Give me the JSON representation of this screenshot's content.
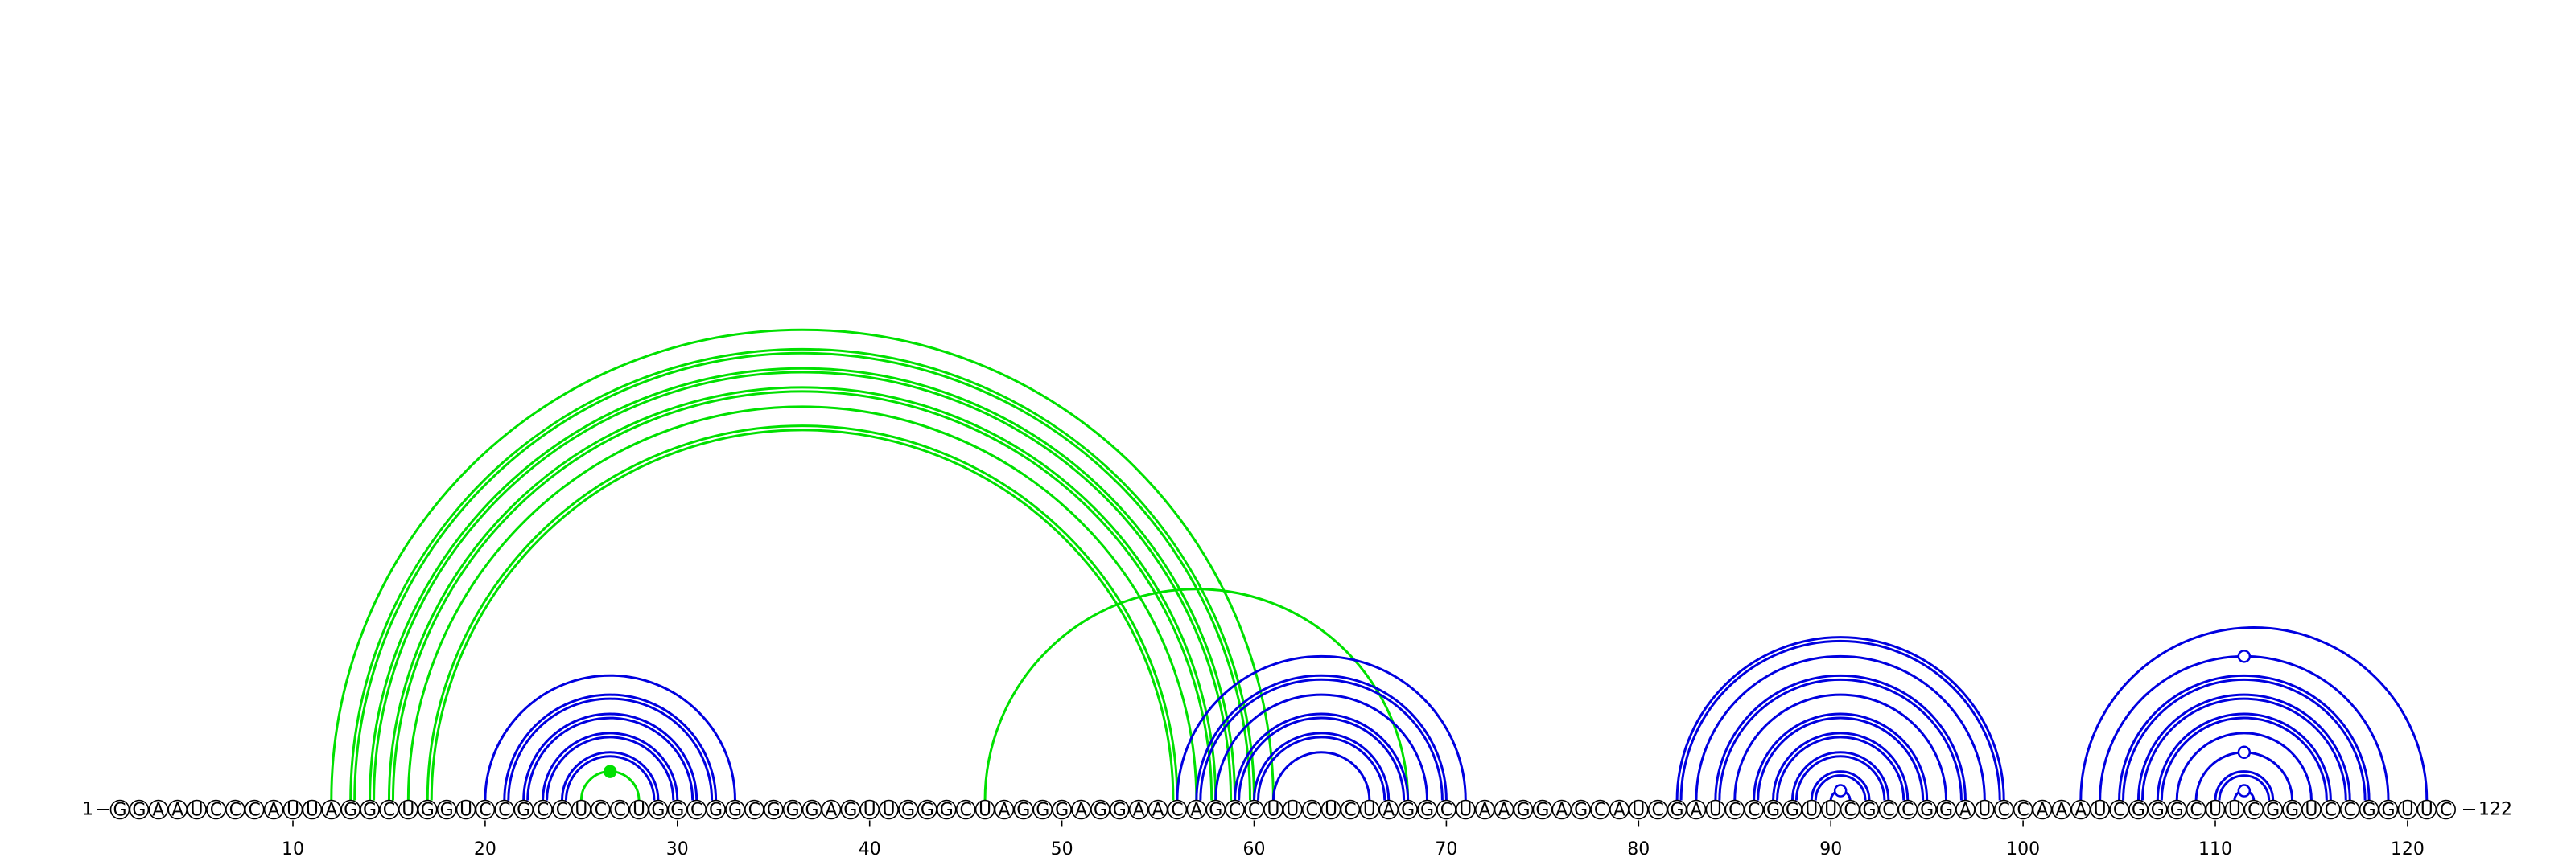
{
  "sequence": "GGAAUCCCAUUAGGCUGGUCCGCCUCCUGGCGGCGGGAGUUGGGCUAGGGAGGAACAGCCUUCUCUAGGCUAAGGAGCAUCGAUCCGGUUCGCCGGAUCCAAAUCGGGCUUCGGUCCGGUUC",
  "start_label": "1",
  "end_label": "122",
  "tick_labels": [
    {
      "pos": 10,
      "label": "10"
    },
    {
      "pos": 20,
      "label": "20"
    },
    {
      "pos": 30,
      "label": "30"
    },
    {
      "pos": 40,
      "label": "40"
    },
    {
      "pos": 50,
      "label": "50"
    },
    {
      "pos": 60,
      "label": "60"
    },
    {
      "pos": 70,
      "label": "70"
    },
    {
      "pos": 80,
      "label": "80"
    },
    {
      "pos": 90,
      "label": "90"
    },
    {
      "pos": 100,
      "label": "100"
    },
    {
      "pos": 110,
      "label": "110"
    },
    {
      "pos": 120,
      "label": "120"
    }
  ],
  "colors": {
    "green": "#00e000",
    "blue": "#0000e0"
  },
  "pairs": [
    {
      "i": 12,
      "j": 61,
      "color": "green"
    },
    {
      "i": 13,
      "j": 60,
      "color": "green",
      "double": true
    },
    {
      "i": 14,
      "j": 59,
      "color": "green",
      "double": true
    },
    {
      "i": 15,
      "j": 58,
      "color": "green",
      "double": true
    },
    {
      "i": 16,
      "j": 57,
      "color": "green"
    },
    {
      "i": 17,
      "j": 56,
      "color": "green",
      "double": true
    },
    {
      "i": 46,
      "j": 68,
      "color": "green"
    },
    {
      "i": 25,
      "j": 28,
      "color": "green",
      "marker": "filled"
    },
    {
      "i": 20,
      "j": 33,
      "color": "blue"
    },
    {
      "i": 21,
      "j": 32,
      "color": "blue",
      "double": true
    },
    {
      "i": 22,
      "j": 31,
      "color": "blue",
      "double": true
    },
    {
      "i": 23,
      "j": 30,
      "color": "blue",
      "double": true
    },
    {
      "i": 24,
      "j": 29,
      "color": "blue",
      "double": true
    },
    {
      "i": 56,
      "j": 71,
      "color": "blue"
    },
    {
      "i": 57,
      "j": 70,
      "color": "blue",
      "double": true
    },
    {
      "i": 58,
      "j": 69,
      "color": "blue"
    },
    {
      "i": 59,
      "j": 68,
      "color": "blue",
      "double": true
    },
    {
      "i": 60,
      "j": 67,
      "color": "blue",
      "double": true
    },
    {
      "i": 61,
      "j": 66,
      "color": "blue"
    },
    {
      "i": 82,
      "j": 99,
      "color": "blue",
      "double": true
    },
    {
      "i": 83,
      "j": 98,
      "color": "blue"
    },
    {
      "i": 84,
      "j": 97,
      "color": "blue",
      "double": true
    },
    {
      "i": 85,
      "j": 96,
      "color": "blue"
    },
    {
      "i": 86,
      "j": 95,
      "color": "blue",
      "double": true
    },
    {
      "i": 87,
      "j": 94,
      "color": "blue",
      "double": true
    },
    {
      "i": 88,
      "j": 93,
      "color": "blue",
      "double": true
    },
    {
      "i": 89,
      "j": 92,
      "color": "blue",
      "double": true
    },
    {
      "i": 90,
      "j": 91,
      "color": "blue",
      "marker": "open"
    },
    {
      "i": 103,
      "j": 121,
      "color": "blue"
    },
    {
      "i": 104,
      "j": 119,
      "color": "blue",
      "marker": "open"
    },
    {
      "i": 105,
      "j": 118,
      "color": "blue",
      "double": true
    },
    {
      "i": 106,
      "j": 117,
      "color": "blue",
      "double": true
    },
    {
      "i": 107,
      "j": 116,
      "color": "blue",
      "double": true
    },
    {
      "i": 108,
      "j": 115,
      "color": "blue"
    },
    {
      "i": 109,
      "j": 114,
      "color": "blue",
      "marker": "open"
    },
    {
      "i": 110,
      "j": 113,
      "color": "blue",
      "double": true
    },
    {
      "i": 111,
      "j": 112,
      "color": "blue",
      "marker": "open"
    }
  ]
}
